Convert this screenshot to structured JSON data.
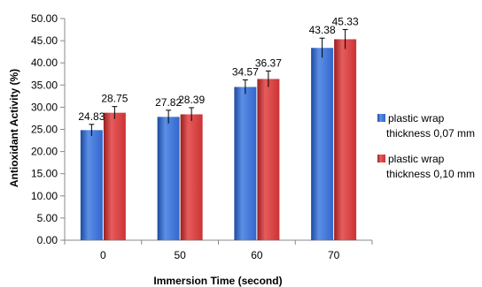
{
  "chart_data": {
    "type": "bar",
    "categories": [
      "0",
      "50",
      "60",
      "70"
    ],
    "series": [
      {
        "name": "plastic wrap thickness 0,07 mm",
        "legend_lines": [
          "plastic wrap",
          "thickness 0,07 mm"
        ],
        "values": [
          24.83,
          27.82,
          34.57,
          43.38
        ],
        "labels": [
          "24.83",
          "27.82",
          "34.57",
          "43.38"
        ],
        "errors": [
          1.3,
          1.5,
          1.6,
          2.2
        ],
        "color": "#3366cc",
        "color_light": "#5b8fe6",
        "color_dark": "#1f4a9e"
      },
      {
        "name": "plastic wrap thickness 0,10 mm",
        "legend_lines": [
          "plastic wrap",
          "thickness 0,10 mm"
        ],
        "values": [
          28.75,
          28.39,
          36.37,
          45.33
        ],
        "labels": [
          "28.75",
          "28.39",
          "36.37",
          "45.33"
        ],
        "errors": [
          1.4,
          1.5,
          1.8,
          2.2
        ],
        "color": "#cc3333",
        "color_light": "#e65c5c",
        "color_dark": "#991f1f"
      }
    ],
    "yticks": [
      "0.00",
      "5.00",
      "10.00",
      "15.00",
      "20.00",
      "25.00",
      "30.00",
      "35.00",
      "40.00",
      "45.00",
      "50.00"
    ],
    "ylim": [
      0,
      50
    ],
    "xlabel": "Immersion Time (second)",
    "ylabel": "Antioxidant Activity (%)",
    "grid": false,
    "legend_position": "right"
  }
}
